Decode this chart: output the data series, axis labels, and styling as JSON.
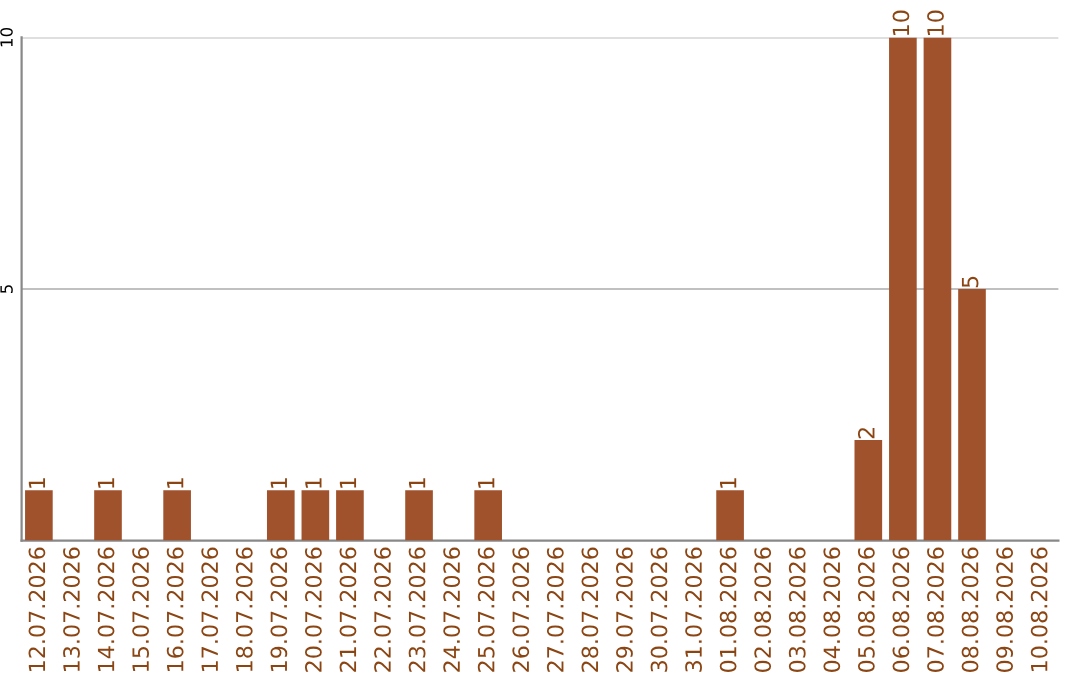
{
  "chart_data": {
    "type": "bar",
    "categories": [
      "12.07.2026",
      "13.07.2026",
      "14.07.2026",
      "15.07.2026",
      "16.07.2026",
      "17.07.2026",
      "18.07.2026",
      "19.07.2026",
      "20.07.2026",
      "21.07.2026",
      "22.07.2026",
      "23.07.2026",
      "24.07.2026",
      "25.07.2026",
      "26.07.2026",
      "27.07.2026",
      "28.07.2026",
      "29.07.2026",
      "30.07.2026",
      "31.07.2026",
      "01.08.2026",
      "02.08.2026",
      "03.08.2026",
      "04.08.2026",
      "05.08.2026",
      "06.08.2026",
      "07.08.2026",
      "08.08.2026",
      "09.08.2026",
      "10.08.2026"
    ],
    "values": [
      1,
      0,
      1,
      0,
      1,
      0,
      0,
      1,
      1,
      1,
      0,
      1,
      0,
      1,
      0,
      0,
      0,
      0,
      0,
      0,
      1,
      0,
      0,
      0,
      2,
      10,
      10,
      5,
      0,
      0
    ],
    "value_labels": [
      "1",
      null,
      "1",
      null,
      "1",
      null,
      null,
      "1",
      "1",
      "1",
      null,
      "1",
      null,
      "1",
      null,
      null,
      null,
      null,
      null,
      null,
      "1",
      null,
      null,
      null,
      "2",
      "10",
      "10",
      "5",
      null,
      null
    ],
    "color": "#a0522d",
    "ylim": [
      0,
      10
    ],
    "yticks": [
      5,
      10
    ],
    "grid": "y"
  }
}
